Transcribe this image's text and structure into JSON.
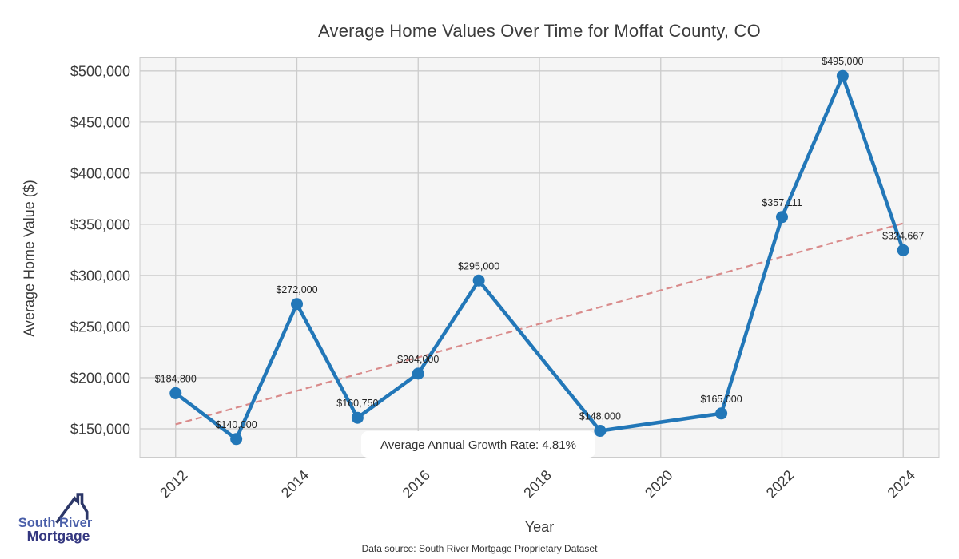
{
  "chart_data": {
    "type": "line",
    "title": "Average Home Values Over Time for Moffat County, CO",
    "xlabel": "Year",
    "ylabel": "Average Home Value ($)",
    "x": [
      2012,
      2013,
      2014,
      2015,
      2016,
      2017,
      2019,
      2021,
      2022,
      2023,
      2024
    ],
    "values": [
      184800,
      140000,
      272000,
      160750,
      204000,
      295000,
      148000,
      165000,
      357111,
      495000,
      324667
    ],
    "point_labels": [
      "$184,800",
      "$140,000",
      "$272,000",
      "$160,750",
      "$204,000",
      "$295,000",
      "$148,000",
      "$165,000",
      "$357,111",
      "$495,000",
      "$324,667"
    ],
    "x_ticks": {
      "values": [
        2012,
        2014,
        2016,
        2018,
        2020,
        2022,
        2024
      ],
      "labels": [
        "2012",
        "2014",
        "2016",
        "2018",
        "2020",
        "2022",
        "2024"
      ]
    },
    "y_ticks": {
      "values": [
        150000,
        200000,
        250000,
        300000,
        350000,
        400000,
        450000,
        500000
      ],
      "labels": [
        "$150,000",
        "$200,000",
        "$250,000",
        "$300,000",
        "$350,000",
        "$400,000",
        "$450,000",
        "$500,000"
      ]
    },
    "xlim": [
      2011.41,
      2024.59
    ],
    "ylim": [
      122250,
      512750
    ],
    "grid": true,
    "legend": "none",
    "line_color": "#2277b8",
    "marker_color": "#2277b8",
    "plot_bg_color": "#f5f5f5",
    "grid_color": "#cccccc",
    "trend": {
      "x": [
        2012,
        2024
      ],
      "y": [
        154300,
        351000
      ],
      "color": "#d98b8b",
      "style": "dashed"
    },
    "annotation": "Average Annual Growth Rate: 4.81%"
  },
  "footer": {
    "source": "Data source: South River Mortgage Proprietary Dataset"
  },
  "logo": {
    "line1": "South River",
    "line2": "Mortgage",
    "line1_color": "#4a5fa9",
    "line2_color": "#343780",
    "roof_color": "#2c3768"
  }
}
